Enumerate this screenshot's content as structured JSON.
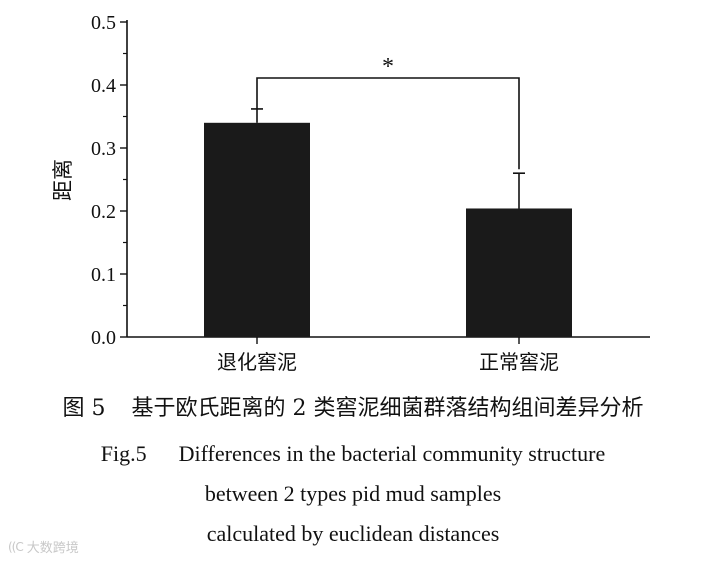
{
  "chart_data": {
    "type": "bar",
    "categories": [
      "退化窖泥",
      "正常窖泥"
    ],
    "values": [
      0.34,
      0.204
    ],
    "errors": [
      0.022,
      0.056
    ],
    "ylabel": "距离",
    "ylim": [
      0,
      0.5
    ],
    "yticks": [
      "0.0",
      "0.1",
      "0.2",
      "0.3",
      "0.4",
      "0.5"
    ],
    "significance": "*",
    "bar_color": "#1a1a1a"
  },
  "caption": {
    "cn_label": "图 5",
    "cn_text": "基于欧氏距离的 2 类窖泥细菌群落结构组间差异分析",
    "en_label": "Fig.5",
    "en_line1": "Differences in the bacterial community structure",
    "en_line2": "between 2 types pid mud samples",
    "en_line3": "calculated by euclidean distances"
  },
  "watermark": {
    "logo": "((C",
    "text": "大数跨境"
  }
}
